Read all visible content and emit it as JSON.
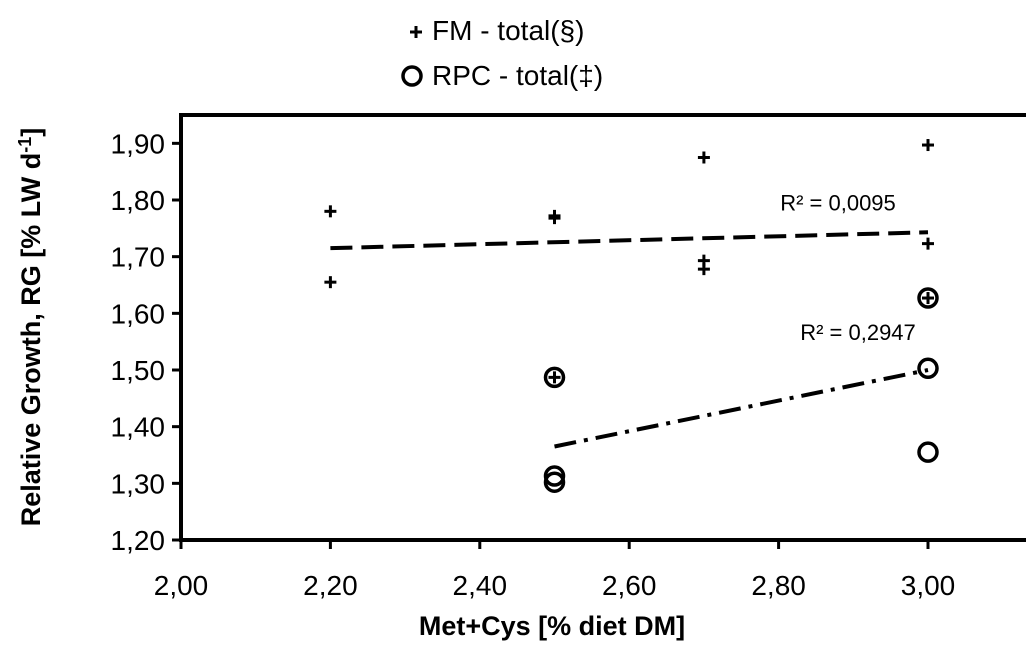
{
  "chart_data": {
    "type": "scatter",
    "xlabel": "Met+Cys [% diet DM]",
    "ylabel": "Relative Growth, RG [% LW d",
    "ylabel_superscript": "-1",
    "ylabel_suffix": "]",
    "xlim": [
      2.0,
      3.15
    ],
    "ylim": [
      1.2,
      1.95
    ],
    "x_ticks": [
      "2,00",
      "2,20",
      "2,40",
      "2,60",
      "2,80",
      "3,00"
    ],
    "x_tick_values": [
      2.0,
      2.2,
      2.4,
      2.6,
      2.8,
      3.0
    ],
    "y_ticks": [
      "1,20",
      "1,30",
      "1,40",
      "1,50",
      "1,60",
      "1,70",
      "1,80",
      "1,90"
    ],
    "y_tick_values": [
      1.2,
      1.3,
      1.4,
      1.5,
      1.6,
      1.7,
      1.8,
      1.9
    ],
    "legend_position": "top-center",
    "grid": false,
    "series": [
      {
        "name": "FM - total(§)",
        "marker": "plus",
        "points": [
          {
            "x": 2.2,
            "y": 1.78
          },
          {
            "x": 2.2,
            "y": 1.655
          },
          {
            "x": 2.5,
            "y": 1.772
          },
          {
            "x": 2.5,
            "y": 1.768
          },
          {
            "x": 2.7,
            "y": 1.875
          },
          {
            "x": 2.7,
            "y": 1.693
          },
          {
            "x": 2.7,
            "y": 1.678
          },
          {
            "x": 3.0,
            "y": 1.897
          },
          {
            "x": 3.0,
            "y": 1.723
          },
          {
            "x": 3.0,
            "y": 1.627
          },
          {
            "x": 2.5,
            "y": 1.487
          }
        ],
        "trendline": {
          "style": "dashed",
          "x_range": [
            2.2,
            3.0
          ],
          "y_range": [
            1.715,
            1.743
          ],
          "r2_label": "R² = 0,0095"
        }
      },
      {
        "name": "RPC - total(‡)",
        "marker": "circle",
        "points": [
          {
            "x": 2.5,
            "y": 1.487
          },
          {
            "x": 2.5,
            "y": 1.313
          },
          {
            "x": 2.5,
            "y": 1.302
          },
          {
            "x": 3.0,
            "y": 1.627
          },
          {
            "x": 3.0,
            "y": 1.503
          },
          {
            "x": 3.0,
            "y": 1.355
          }
        ],
        "trendline": {
          "style": "dash-dot",
          "x_range": [
            2.5,
            3.0
          ],
          "y_range": [
            1.365,
            1.5
          ],
          "r2_label": "R² = 0,2947"
        }
      }
    ]
  }
}
